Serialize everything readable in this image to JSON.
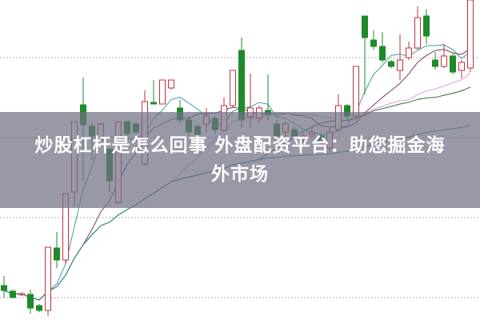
{
  "title": {
    "line1": "炒股杠杆是怎么回事 外盘配资平台：助您掘金海",
    "line2": "外市场"
  },
  "colors": {
    "up": "#c0303a",
    "down": "#1e8a2a",
    "grid": "#9a9a9a",
    "banner": "#707084",
    "ma5": "#3aa0a0",
    "ma10": "#7a3a6a",
    "ma20": "#e09ae0",
    "ma30": "#3a6a3a",
    "ma60": "#2a8a8a"
  },
  "chart_data": {
    "type": "candlestick",
    "title": "",
    "xlabel": "",
    "ylabel": "",
    "ylim": [
      0,
      40
    ],
    "grid": true,
    "moving_averages": [
      5,
      10,
      20,
      30,
      60
    ],
    "candles": [
      [
        4.3,
        5.5,
        2.8,
        3.7
      ],
      [
        3.6,
        3.8,
        2.8,
        2.8
      ],
      [
        3.2,
        3.5,
        3.0,
        3.3
      ],
      [
        3.2,
        3.8,
        0.8,
        1.5
      ],
      [
        1.8,
        2.0,
        1.0,
        1.2
      ],
      [
        1.2,
        9.1,
        0.5,
        9.1
      ],
      [
        9.0,
        11.0,
        6.5,
        7.5
      ],
      [
        7.5,
        15.8,
        7.0,
        15.8
      ],
      [
        16.0,
        24.8,
        14.2,
        24.8
      ],
      [
        26.9,
        30.3,
        17.5,
        24.4
      ],
      [
        24.2,
        24.7,
        20.0,
        23.0
      ],
      [
        22.5,
        24.7,
        22.5,
        24.5
      ],
      [
        21.4,
        21.4,
        16.0,
        17.4
      ],
      [
        14.7,
        24.8,
        14.5,
        24.8
      ],
      [
        24.8,
        24.8,
        23.0,
        23.3
      ],
      [
        24.5,
        24.8,
        23.0,
        23.5
      ],
      [
        19.5,
        28.7,
        19.3,
        27.3
      ],
      [
        27.2,
        30.0,
        27.0,
        27.0
      ],
      [
        27.0,
        30.0,
        27.0,
        30.0
      ],
      [
        29.0,
        30.0,
        28.8,
        30.0
      ],
      [
        26.5,
        27.5,
        24.5,
        25.0
      ],
      [
        25.0,
        25.5,
        23.0,
        23.5
      ],
      [
        24.2,
        24.5,
        22.8,
        23.2
      ],
      [
        24.5,
        26.5,
        23.5,
        25.5
      ],
      [
        25.2,
        25.5,
        23.3,
        23.8
      ],
      [
        23.7,
        27.8,
        23.5,
        26.8
      ],
      [
        26.8,
        31.2,
        26.5,
        31.2
      ],
      [
        33.7,
        35.3,
        24.0,
        25.0
      ],
      [
        25.4,
        30.8,
        24.0,
        26.5
      ],
      [
        25.2,
        26.8,
        24.8,
        26.5
      ],
      [
        26.2,
        30.7,
        25.0,
        25.7
      ],
      [
        24.5,
        25.0,
        22.5,
        23.0
      ],
      [
        23.5,
        24.8,
        22.8,
        24.5
      ],
      [
        23.8,
        24.2,
        22.5,
        23.0
      ],
      [
        22.5,
        23.5,
        22.0,
        23.0
      ],
      [
        23.2,
        24.0,
        22.8,
        23.5
      ],
      [
        23.0,
        23.3,
        22.0,
        22.2
      ],
      [
        21.5,
        24.0,
        21.0,
        23.5
      ],
      [
        23.8,
        28.2,
        23.5,
        26.8
      ],
      [
        26.8,
        27.0,
        25.0,
        25.5
      ],
      [
        25.5,
        31.7,
        25.0,
        31.7
      ],
      [
        38.0,
        38.0,
        28.2,
        35.3
      ],
      [
        35.0,
        36.2,
        33.8,
        34.2
      ],
      [
        34.2,
        36.0,
        32.2,
        32.5
      ],
      [
        32.3,
        32.5,
        31.5,
        31.7
      ],
      [
        31.2,
        35.7,
        30.0,
        32.5
      ],
      [
        32.8,
        34.8,
        32.5,
        34.0
      ],
      [
        34.0,
        39.2,
        33.8,
        37.8
      ],
      [
        38.0,
        38.8,
        34.5,
        35.5
      ],
      [
        32.5,
        33.5,
        31.3,
        31.7
      ],
      [
        31.7,
        34.5,
        31.5,
        33.0
      ],
      [
        33.0,
        33.3,
        30.7,
        31.0
      ],
      [
        31.2,
        32.5,
        30.2,
        32.2
      ],
      [
        31.5,
        40.0,
        31.0,
        40.0
      ]
    ]
  }
}
